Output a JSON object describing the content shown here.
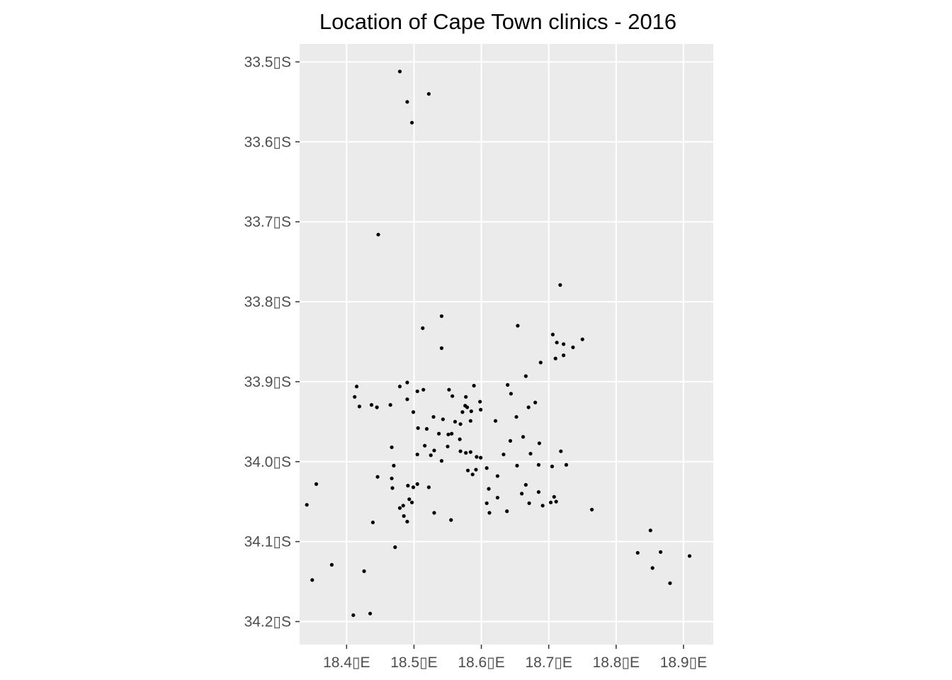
{
  "chart_data": {
    "type": "scatter",
    "title": "Location of Cape Town clinics - 2016",
    "xlabel": "",
    "ylabel": "",
    "xlim": [
      18.3303,
      18.9442
    ],
    "ylim": [
      -34.2288,
      -33.4775
    ],
    "x_ticks": [
      {
        "value": 18.4,
        "label": "18.4▯E"
      },
      {
        "value": 18.5,
        "label": "18.5▯E"
      },
      {
        "value": 18.6,
        "label": "18.6▯E"
      },
      {
        "value": 18.7,
        "label": "18.7▯E"
      },
      {
        "value": 18.8,
        "label": "18.8▯E"
      },
      {
        "value": 18.9,
        "label": "18.9▯E"
      }
    ],
    "y_ticks": [
      {
        "value": -33.5,
        "label": "33.5▯S"
      },
      {
        "value": -33.6,
        "label": "33.6▯S"
      },
      {
        "value": -33.7,
        "label": "33.7▯S"
      },
      {
        "value": -33.8,
        "label": "33.8▯S"
      },
      {
        "value": -33.9,
        "label": "33.9▯S"
      },
      {
        "value": -34.0,
        "label": "34.0▯S"
      },
      {
        "value": -34.1,
        "label": "34.1▯S"
      },
      {
        "value": -34.2,
        "label": "34.2▯S"
      }
    ],
    "grid": true,
    "colors": {
      "panel": "#ebebeb",
      "grid": "#ffffff",
      "point": "#000000",
      "tick": "#333333"
    },
    "points": [
      [
        18.479,
        -33.512
      ],
      [
        18.522,
        -33.54
      ],
      [
        18.49,
        -33.55
      ],
      [
        18.497,
        -33.576
      ],
      [
        18.447,
        -33.716
      ],
      [
        18.717,
        -33.779
      ],
      [
        18.541,
        -33.818
      ],
      [
        18.654,
        -33.83
      ],
      [
        18.513,
        -33.833
      ],
      [
        18.541,
        -33.858
      ],
      [
        18.706,
        -33.841
      ],
      [
        18.712,
        -33.851
      ],
      [
        18.722,
        -33.853
      ],
      [
        18.75,
        -33.847
      ],
      [
        18.736,
        -33.857
      ],
      [
        18.722,
        -33.867
      ],
      [
        18.71,
        -33.871
      ],
      [
        18.688,
        -33.876
      ],
      [
        18.666,
        -33.893
      ],
      [
        18.639,
        -33.904
      ],
      [
        18.644,
        -33.915
      ],
      [
        18.415,
        -33.906
      ],
      [
        18.412,
        -33.919
      ],
      [
        18.419,
        -33.931
      ],
      [
        18.437,
        -33.929
      ],
      [
        18.445,
        -33.932
      ],
      [
        18.465,
        -33.929
      ],
      [
        18.479,
        -33.906
      ],
      [
        18.49,
        -33.901
      ],
      [
        18.49,
        -33.922
      ],
      [
        18.505,
        -33.912
      ],
      [
        18.514,
        -33.91
      ],
      [
        18.499,
        -33.938
      ],
      [
        18.552,
        -33.91
      ],
      [
        18.557,
        -33.918
      ],
      [
        18.589,
        -33.905
      ],
      [
        18.577,
        -33.919
      ],
      [
        18.576,
        -33.93
      ],
      [
        18.579,
        -33.932
      ],
      [
        18.598,
        -33.925
      ],
      [
        18.599,
        -33.935
      ],
      [
        18.585,
        -33.937
      ],
      [
        18.572,
        -33.938
      ],
      [
        18.529,
        -33.944
      ],
      [
        18.543,
        -33.947
      ],
      [
        18.561,
        -33.95
      ],
      [
        18.569,
        -33.953
      ],
      [
        18.584,
        -33.949
      ],
      [
        18.621,
        -33.949
      ],
      [
        18.652,
        -33.944
      ],
      [
        18.67,
        -33.932
      ],
      [
        18.68,
        -33.926
      ],
      [
        18.506,
        -33.958
      ],
      [
        18.519,
        -33.959
      ],
      [
        18.537,
        -33.965
      ],
      [
        18.551,
        -33.966
      ],
      [
        18.556,
        -33.965
      ],
      [
        18.568,
        -33.972
      ],
      [
        18.516,
        -33.98
      ],
      [
        18.53,
        -33.986
      ],
      [
        18.55,
        -33.981
      ],
      [
        18.569,
        -33.987
      ],
      [
        18.577,
        -33.989
      ],
      [
        18.584,
        -33.988
      ],
      [
        18.467,
        -33.982
      ],
      [
        18.505,
        -33.991
      ],
      [
        18.525,
        -33.992
      ],
      [
        18.541,
        -33.999
      ],
      [
        18.593,
        -33.994
      ],
      [
        18.599,
        -33.995
      ],
      [
        18.633,
        -33.991
      ],
      [
        18.643,
        -33.974
      ],
      [
        18.662,
        -33.969
      ],
      [
        18.686,
        -33.977
      ],
      [
        18.673,
        -33.99
      ],
      [
        18.718,
        -33.987
      ],
      [
        18.47,
        -34.005
      ],
      [
        18.58,
        -34.011
      ],
      [
        18.587,
        -34.016
      ],
      [
        18.592,
        -34.01
      ],
      [
        18.608,
        -34.008
      ],
      [
        18.624,
        -34.018
      ],
      [
        18.653,
        -34.005
      ],
      [
        18.685,
        -34.004
      ],
      [
        18.705,
        -34.006
      ],
      [
        18.726,
        -34.004
      ],
      [
        18.446,
        -34.019
      ],
      [
        18.467,
        -34.021
      ],
      [
        18.468,
        -34.033
      ],
      [
        18.491,
        -34.03
      ],
      [
        18.499,
        -34.032
      ],
      [
        18.505,
        -34.028
      ],
      [
        18.522,
        -34.032
      ],
      [
        18.611,
        -34.034
      ],
      [
        18.355,
        -34.028
      ],
      [
        18.341,
        -34.054
      ],
      [
        18.484,
        -34.055
      ],
      [
        18.479,
        -34.058
      ],
      [
        18.493,
        -34.047
      ],
      [
        18.497,
        -34.051
      ],
      [
        18.53,
        -34.064
      ],
      [
        18.555,
        -34.073
      ],
      [
        18.608,
        -34.052
      ],
      [
        18.612,
        -34.064
      ],
      [
        18.624,
        -34.045
      ],
      [
        18.638,
        -34.062
      ],
      [
        18.66,
        -34.04
      ],
      [
        18.666,
        -34.029
      ],
      [
        18.671,
        -34.052
      ],
      [
        18.685,
        -34.038
      ],
      [
        18.691,
        -34.055
      ],
      [
        18.703,
        -34.051
      ],
      [
        18.708,
        -34.044
      ],
      [
        18.711,
        -34.05
      ],
      [
        18.764,
        -34.06
      ],
      [
        18.485,
        -34.068
      ],
      [
        18.49,
        -34.075
      ],
      [
        18.439,
        -34.076
      ],
      [
        18.472,
        -34.107
      ],
      [
        18.378,
        -34.129
      ],
      [
        18.426,
        -34.137
      ],
      [
        18.349,
        -34.148
      ],
      [
        18.41,
        -34.192
      ],
      [
        18.435,
        -34.19
      ],
      [
        18.851,
        -34.086
      ],
      [
        18.832,
        -34.114
      ],
      [
        18.866,
        -34.113
      ],
      [
        18.854,
        -34.133
      ],
      [
        18.909,
        -34.118
      ],
      [
        18.88,
        -34.152
      ]
    ]
  }
}
